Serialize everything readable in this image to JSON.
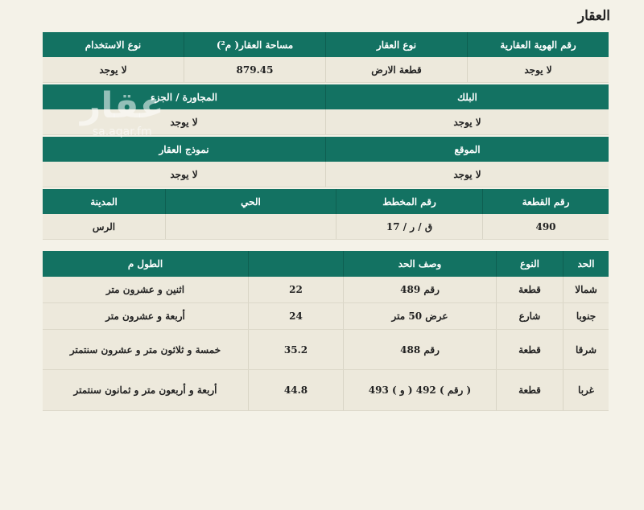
{
  "title": "العقار",
  "watermark": {
    "logo": "عقار",
    "site": "sa.aqar.fm"
  },
  "info": {
    "row1": {
      "headers": [
        "رقم الهوية العقارية",
        "نوع العقار",
        "مساحة العقار( م²)",
        "نوع الاستخدام"
      ],
      "values": [
        "لا يوجد",
        "قطعة الارض",
        "879.45",
        "لا يوجد"
      ]
    },
    "row2": {
      "headers": [
        "البلك",
        "المجاورة / الجزء"
      ],
      "values": [
        "لا يوجد",
        "لا يوجد"
      ]
    },
    "row3": {
      "headers": [
        "الموقع",
        "نموذج العقار"
      ],
      "values": [
        "لا يوجد",
        "لا يوجد"
      ]
    },
    "row4": {
      "headers": [
        "رقم القطعة",
        "رقم المخطط",
        "الحي",
        "المدينة"
      ],
      "values": [
        "490",
        "ق / ر / 17",
        "",
        "الرس"
      ]
    }
  },
  "bounds": {
    "headers": [
      "الحد",
      "النوع",
      "وصف الحد",
      "",
      "الطول م"
    ],
    "rows": [
      [
        "شمالا",
        "قطعة",
        "رقم 489",
        "22",
        "اثنين و عشرون متر"
      ],
      [
        "جنوبا",
        "شارع",
        "عرض 50 متر",
        "24",
        "أربعة و عشرون متر"
      ],
      [
        "شرقا",
        "قطعة",
        "رقم 488",
        "35.2",
        "خمسة و ثلاثون متر و عشرون سنتمتر"
      ],
      [
        "غربا",
        "قطعة",
        "( رقم ) 492 ( و ) 493",
        "44.8",
        "أربعة و أربعون متر و ثمانون سنتمتر"
      ]
    ]
  }
}
